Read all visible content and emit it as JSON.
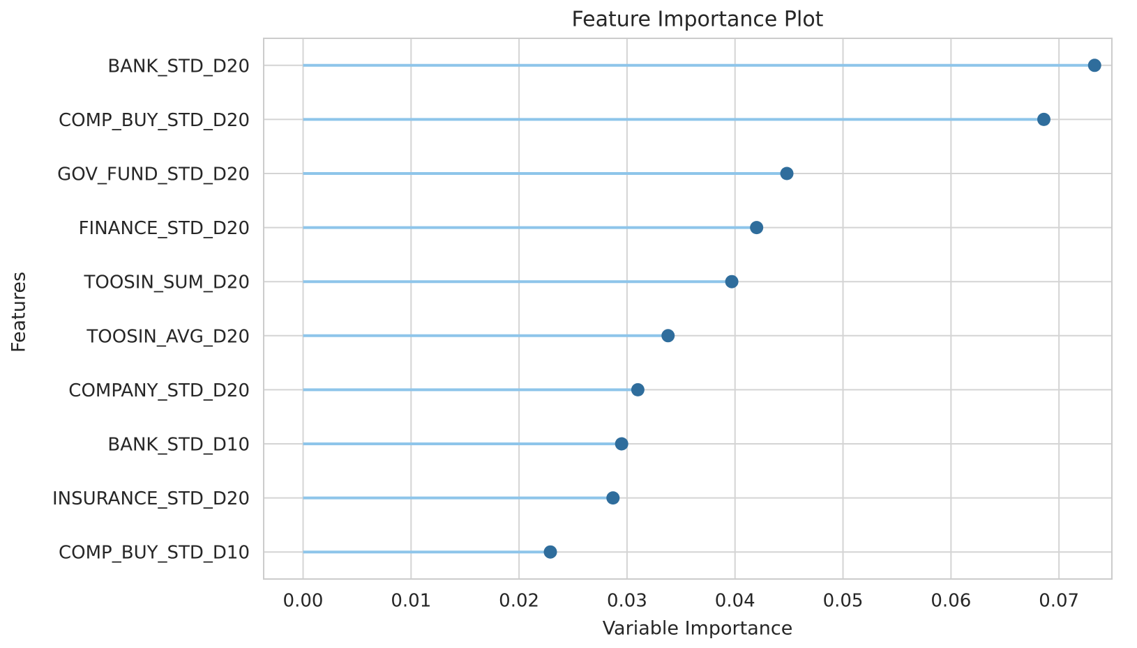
{
  "chart_data": {
    "type": "lollipop",
    "orientation": "horizontal",
    "title": "Feature Importance Plot",
    "x_label": "Variable Importance",
    "y_label": "Features",
    "categories": [
      "BANK_STD_D20",
      "COMP_BUY_STD_D20",
      "GOV_FUND_STD_D20",
      "FINANCE_STD_D20",
      "TOOSIN_SUM_D20",
      "TOOSIN_AVG_D20",
      "COMPANY_STD_D20",
      "BANK_STD_D10",
      "INSURANCE_STD_D20",
      "COMP_BUY_STD_D10"
    ],
    "values": [
      0.0733,
      0.0686,
      0.0448,
      0.042,
      0.0397,
      0.0338,
      0.031,
      0.0295,
      0.0287,
      0.0229
    ],
    "stem_color": "#8ec5ea",
    "color": "#2f6d9c",
    "xlim": [
      -0.00365,
      0.0749
    ],
    "xticks": [
      {
        "value": 0,
        "label": "0.00"
      },
      {
        "value": 0.01,
        "label": "0.01"
      },
      {
        "value": 0.02,
        "label": "0.02"
      },
      {
        "value": 0.03,
        "label": "0.03"
      },
      {
        "value": 0.04,
        "label": "0.04"
      },
      {
        "value": 0.05,
        "label": "0.05"
      },
      {
        "value": 0.06,
        "label": "0.06"
      },
      {
        "value": 0.07,
        "label": "0.07"
      }
    ],
    "grid": true
  }
}
